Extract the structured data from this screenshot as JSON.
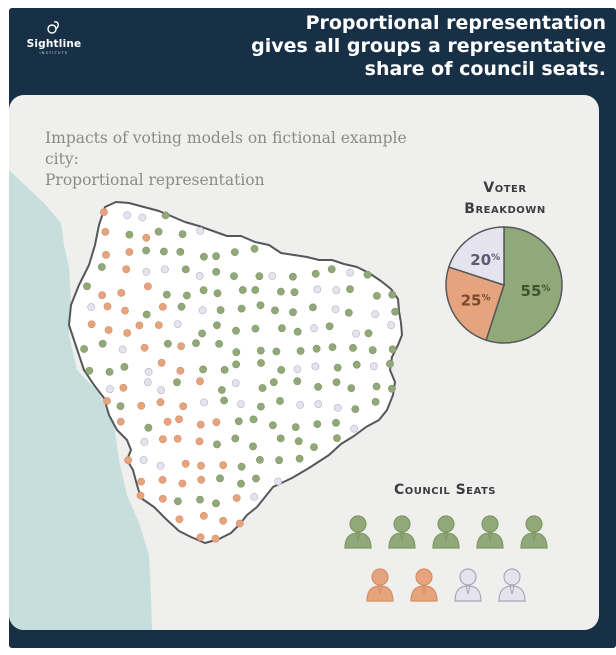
{
  "brand": {
    "name": "Sightline",
    "sub": "INSTITUTE",
    "icon": "sightline-logo-icon"
  },
  "headline": {
    "line1": "Proportional representation",
    "line2": "gives all groups a representative",
    "line3": "share of council seats."
  },
  "subtitle": {
    "line1": "Impacts of voting models on fictional example city:",
    "line2": "Proportional representation"
  },
  "voter_breakdown": {
    "title_line1": "Voter",
    "title_line2": "Breakdown",
    "slices": [
      {
        "group": "green",
        "value": 55,
        "label": "55",
        "unit": "%",
        "color": "#91a878"
      },
      {
        "group": "orange",
        "value": 25,
        "label": "25",
        "unit": "%",
        "color": "#e5a47e"
      },
      {
        "group": "lavender",
        "value": 20,
        "label": "20",
        "unit": "%",
        "color": "#e4e3ee"
      }
    ]
  },
  "council_seats": {
    "title": "Council Seats",
    "seats": [
      "green",
      "green",
      "green",
      "green",
      "green",
      "orange",
      "orange",
      "lavender",
      "lavender"
    ]
  },
  "colors": {
    "frame": "#173046",
    "panel": "#eff0ee",
    "water": "#c6dfdc",
    "green": "#91a878",
    "orange": "#e5a47e",
    "lavender": "#e4e3ee",
    "green_dark": "#7f9765",
    "orange_dark": "#d58f66",
    "lavender_dark": "#b7b4c8"
  }
}
